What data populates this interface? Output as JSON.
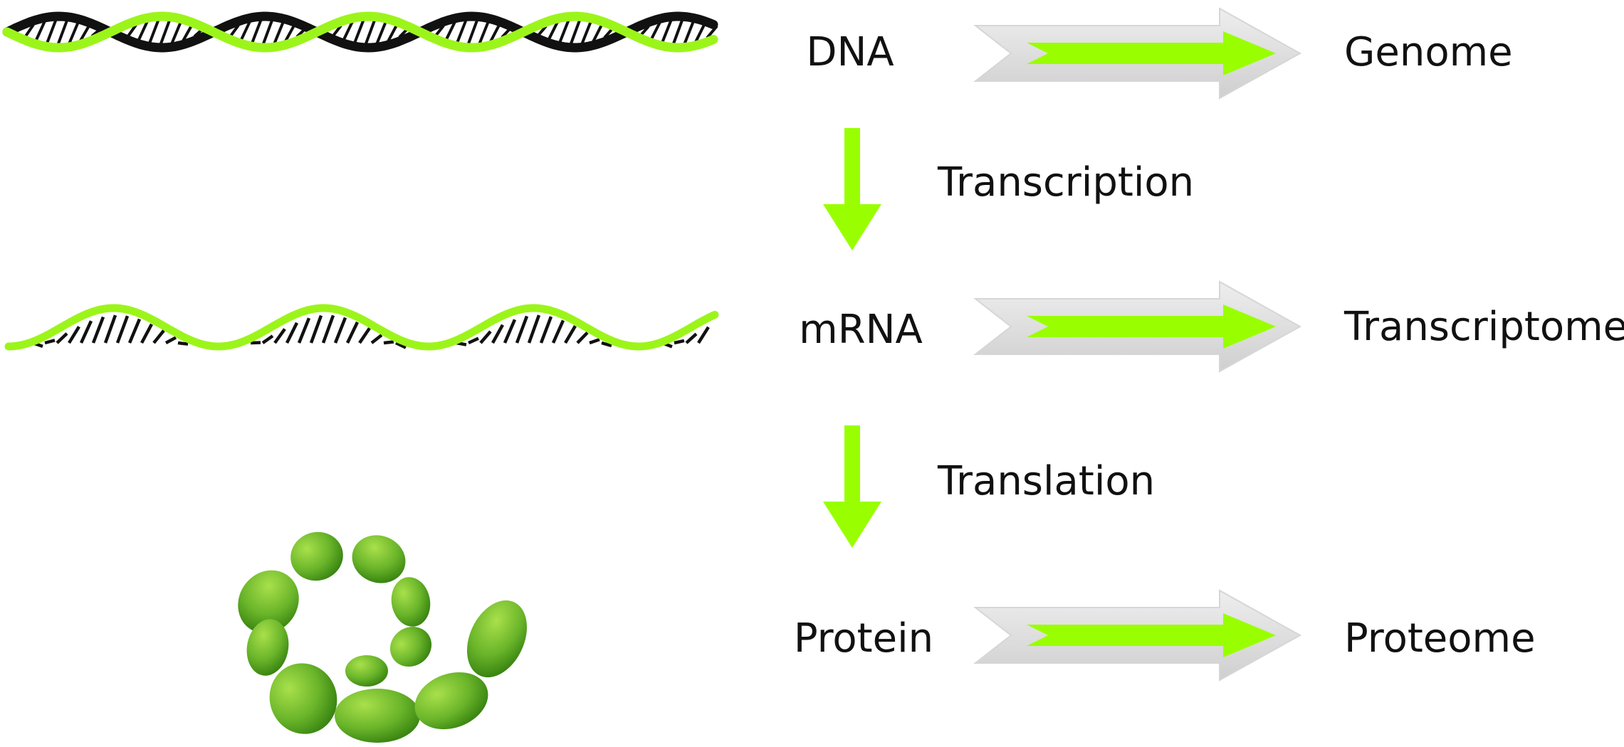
{
  "labels": {
    "dna": "DNA",
    "genome": "Genome",
    "transcription": "Transcription",
    "mrna": "mRNA",
    "transcriptome": "Transcriptome",
    "translation": "Translation",
    "protein": "Protein",
    "proteome": "Proteome"
  },
  "colors": {
    "strand_green": "#9cf51a",
    "strand_black": "#111111",
    "arrow_green": "#99ff00",
    "arrow_outline": "#e2e2e2",
    "protein_light": "#8fd23a",
    "protein_dark": "#3f8f12"
  }
}
